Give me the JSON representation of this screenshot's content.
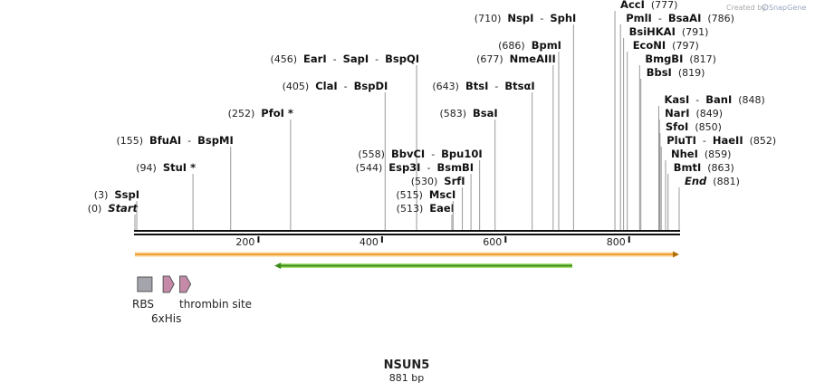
{
  "credit": {
    "prefix": "Created by",
    "brand": "SnapGene"
  },
  "sequence": {
    "name": "NSUN5",
    "length_label": "881 bp",
    "length": 881
  },
  "ruler": {
    "ticks": [
      200,
      400,
      600,
      800
    ]
  },
  "sites": [
    {
      "id": "start",
      "row": 0,
      "pos": 0,
      "pos_label": "(0)",
      "names": [
        "Start"
      ],
      "italic": true
    },
    {
      "id": "sspi",
      "row": 1,
      "pos": 3,
      "pos_label": "(3)",
      "names": [
        "SspI"
      ]
    },
    {
      "id": "stui",
      "row": 3,
      "pos": 94,
      "pos_label": "(94)",
      "names": [
        "StuI *"
      ]
    },
    {
      "id": "bfuai",
      "row": 5,
      "pos": 155,
      "pos_label": "(155)",
      "names": [
        "BfuAI",
        "BspMI"
      ]
    },
    {
      "id": "pfoi",
      "row": 7,
      "pos": 252,
      "pos_label": "(252)",
      "names": [
        "PfoI *"
      ]
    },
    {
      "id": "clai",
      "row": 9,
      "pos": 405,
      "pos_label": "(405)",
      "names": [
        "ClaI",
        "BspDI"
      ]
    },
    {
      "id": "eari",
      "row": 11,
      "pos": 456,
      "pos_label": "(456)",
      "names": [
        "EarI",
        "SapI",
        "BspQI"
      ]
    },
    {
      "id": "eaei",
      "row": 0,
      "pos": 513,
      "pos_label": "(513)",
      "names": [
        "EaeI"
      ]
    },
    {
      "id": "msci",
      "row": 1,
      "pos": 515,
      "pos_label": "(515)",
      "names": [
        "MscI"
      ]
    },
    {
      "id": "srfi",
      "row": 2,
      "pos": 530,
      "pos_label": "(530)",
      "names": [
        "SrfI"
      ]
    },
    {
      "id": "esp3i",
      "row": 3,
      "pos": 544,
      "pos_label": "(544)",
      "names": [
        "Esp3I",
        "BsmBI"
      ]
    },
    {
      "id": "bbvci",
      "row": 4,
      "pos": 558,
      "pos_label": "(558)",
      "names": [
        "BbvCI",
        "Bpu10I"
      ]
    },
    {
      "id": "bsai",
      "row": 7,
      "pos": 583,
      "pos_label": "(583)",
      "names": [
        "BsaI"
      ]
    },
    {
      "id": "btsi",
      "row": 9,
      "pos": 643,
      "pos_label": "(643)",
      "names": [
        "BtsI",
        "BtsαI"
      ]
    },
    {
      "id": "nmeaiii",
      "row": 11,
      "pos": 677,
      "pos_label": "(677)",
      "names": [
        "NmeAIII"
      ]
    },
    {
      "id": "bpmi",
      "row": 12,
      "pos": 686,
      "pos_label": "(686)",
      "names": [
        "BpmI"
      ]
    },
    {
      "id": "nspi",
      "row": 14,
      "pos": 710,
      "pos_label": "(710)",
      "names": [
        "NspI",
        "SphI"
      ],
      "label_left": true
    },
    {
      "id": "acci",
      "row": 15,
      "pos": 777,
      "pos_label": "(777)",
      "names": [
        "AccI"
      ],
      "label_right": true
    },
    {
      "id": "pmli",
      "row": 14,
      "pos": 786,
      "pos_label": "(786)",
      "names": [
        "PmlI",
        "BsaAI"
      ],
      "label_right": true
    },
    {
      "id": "bsihkai",
      "row": 13,
      "pos": 791,
      "pos_label": "(791)",
      "names": [
        "BsiHKAI"
      ],
      "label_right": true
    },
    {
      "id": "econi",
      "row": 12,
      "pos": 797,
      "pos_label": "(797)",
      "names": [
        "EcoNI"
      ],
      "label_right": true
    },
    {
      "id": "bmgbi",
      "row": 11,
      "pos": 817,
      "pos_label": "(817)",
      "names": [
        "BmgBI"
      ],
      "label_right": true
    },
    {
      "id": "bbsi",
      "row": 10,
      "pos": 819,
      "pos_label": "(819)",
      "names": [
        "BbsI"
      ],
      "label_right": true
    },
    {
      "id": "kasi",
      "row": 8,
      "pos": 848,
      "pos_label": "(848)",
      "names": [
        "KasI",
        "BanI"
      ],
      "label_right": true
    },
    {
      "id": "nari",
      "row": 7,
      "pos": 849,
      "pos_label": "(849)",
      "names": [
        "NarI"
      ],
      "label_right": true
    },
    {
      "id": "sfoi",
      "row": 6,
      "pos": 850,
      "pos_label": "(850)",
      "names": [
        "SfoI"
      ],
      "label_right": true
    },
    {
      "id": "pluti",
      "row": 5,
      "pos": 852,
      "pos_label": "(852)",
      "names": [
        "PluTI",
        "HaeII"
      ],
      "label_right": true
    },
    {
      "id": "nhei",
      "row": 4,
      "pos": 859,
      "pos_label": "(859)",
      "names": [
        "NheI"
      ],
      "label_right": true
    },
    {
      "id": "bmti",
      "row": 3,
      "pos": 863,
      "pos_label": "(863)",
      "names": [
        "BmtI"
      ],
      "label_right": true
    },
    {
      "id": "end",
      "row": 2,
      "pos": 881,
      "pos_label": "(881)",
      "names": [
        "End"
      ],
      "italic": true,
      "label_right": true
    }
  ],
  "features": {
    "orf_bar": {
      "color": "#f0a030",
      "border": "#b07000"
    },
    "green_arrow": {
      "color": "#a8e070",
      "border": "#3c8c1c",
      "from": 226,
      "to": 708
    },
    "small": [
      {
        "id": "rbs",
        "label": "RBS",
        "shape": "box",
        "color": "#a4a4ac",
        "pos": 16
      },
      {
        "id": "his",
        "label": "6xHis",
        "shape": "arrow",
        "color": "#c58aa8",
        "pos": 53
      },
      {
        "id": "thrombin",
        "label": "thrombin site",
        "shape": "arrow",
        "color": "#c58aa8",
        "pos": 80
      }
    ]
  }
}
